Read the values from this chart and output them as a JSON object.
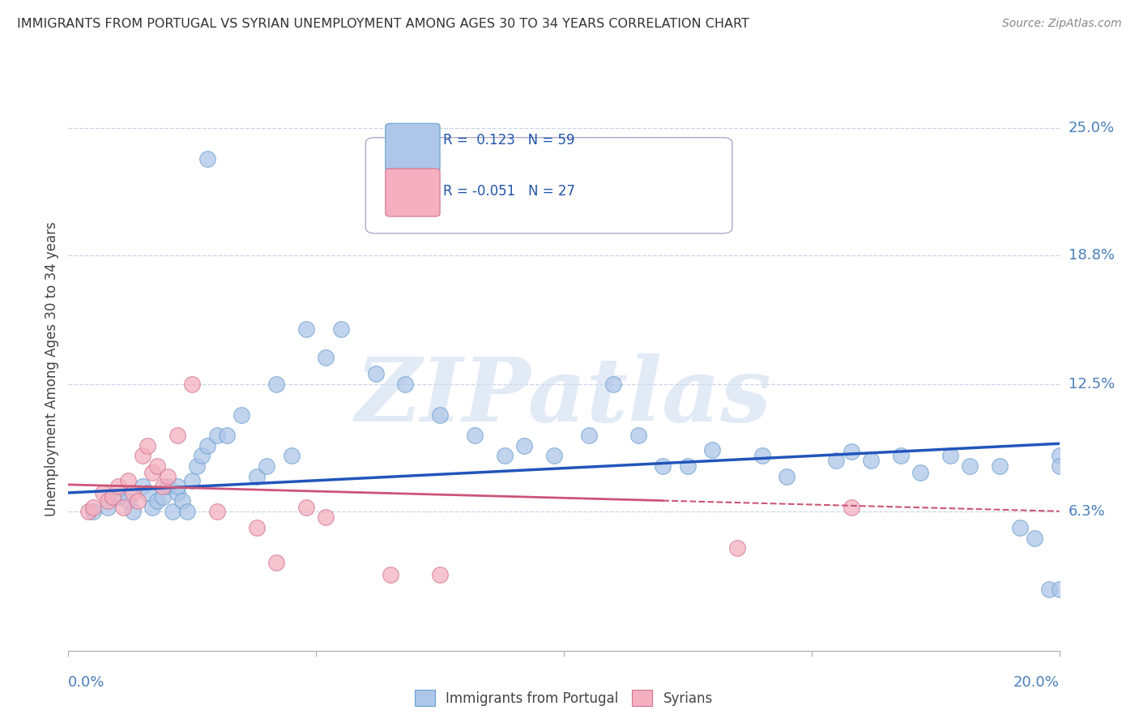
{
  "title": "IMMIGRANTS FROM PORTUGAL VS SYRIAN UNEMPLOYMENT AMONG AGES 30 TO 34 YEARS CORRELATION CHART",
  "source": "Source: ZipAtlas.com",
  "ylabel": "Unemployment Among Ages 30 to 34 years",
  "xlim": [
    0.0,
    0.2
  ],
  "ylim": [
    -0.005,
    0.27
  ],
  "ytick_positions": [
    0.063,
    0.125,
    0.188,
    0.25
  ],
  "ytick_labels": [
    "6.3%",
    "12.5%",
    "18.8%",
    "25.0%"
  ],
  "series1_color": "#aec6e8",
  "series2_color": "#f4b0c0",
  "series1_edge": "#6a9fd0",
  "series2_edge": "#d07090",
  "trendline1_color": "#2255bb",
  "trendline2_color": "#cc5577",
  "watermark_color": "#d0ddf0",
  "watermark_alpha": 0.6,
  "blue_x": [
    0.005,
    0.008,
    0.01,
    0.012,
    0.013,
    0.015,
    0.016,
    0.017,
    0.018,
    0.019,
    0.02,
    0.021,
    0.022,
    0.022,
    0.023,
    0.024,
    0.025,
    0.026,
    0.027,
    0.028,
    0.03,
    0.032,
    0.035,
    0.038,
    0.04,
    0.042,
    0.045,
    0.048,
    0.052,
    0.055,
    0.062,
    0.068,
    0.075,
    0.082,
    0.088,
    0.092,
    0.098,
    0.105,
    0.11,
    0.115,
    0.12,
    0.125,
    0.13,
    0.14,
    0.145,
    0.155,
    0.158,
    0.162,
    0.168,
    0.172,
    0.178,
    0.182,
    0.188,
    0.192,
    0.195,
    0.198,
    0.2,
    0.2,
    0.2
  ],
  "blue_y": [
    0.063,
    0.065,
    0.07,
    0.068,
    0.063,
    0.075,
    0.072,
    0.065,
    0.068,
    0.07,
    0.075,
    0.063,
    0.072,
    0.075,
    0.068,
    0.063,
    0.078,
    0.085,
    0.09,
    0.095,
    0.1,
    0.1,
    0.11,
    0.08,
    0.085,
    0.125,
    0.09,
    0.152,
    0.138,
    0.152,
    0.13,
    0.125,
    0.11,
    0.1,
    0.09,
    0.095,
    0.09,
    0.1,
    0.125,
    0.1,
    0.085,
    0.085,
    0.093,
    0.09,
    0.08,
    0.088,
    0.092,
    0.088,
    0.09,
    0.082,
    0.09,
    0.085,
    0.085,
    0.055,
    0.05,
    0.025,
    0.09,
    0.085,
    0.025
  ],
  "blue_outlier_x": [
    0.028
  ],
  "blue_outlier_y": [
    0.235
  ],
  "pink_x": [
    0.004,
    0.005,
    0.007,
    0.008,
    0.009,
    0.01,
    0.011,
    0.012,
    0.013,
    0.014,
    0.015,
    0.016,
    0.017,
    0.018,
    0.019,
    0.02,
    0.022,
    0.025,
    0.03,
    0.038,
    0.042,
    0.048,
    0.052,
    0.065,
    0.075,
    0.135,
    0.158
  ],
  "pink_y": [
    0.063,
    0.065,
    0.072,
    0.068,
    0.07,
    0.075,
    0.065,
    0.078,
    0.072,
    0.068,
    0.09,
    0.095,
    0.082,
    0.085,
    0.075,
    0.08,
    0.1,
    0.125,
    0.063,
    0.055,
    0.038,
    0.065,
    0.06,
    0.032,
    0.032,
    0.045,
    0.065
  ],
  "trendline1_x0": 0.0,
  "trendline1_y0": 0.072,
  "trendline1_x1": 0.2,
  "trendline1_y1": 0.096,
  "trendline2_x0": 0.0,
  "trendline2_y0": 0.076,
  "trendline2_x1": 0.2,
  "trendline2_y1": 0.063
}
